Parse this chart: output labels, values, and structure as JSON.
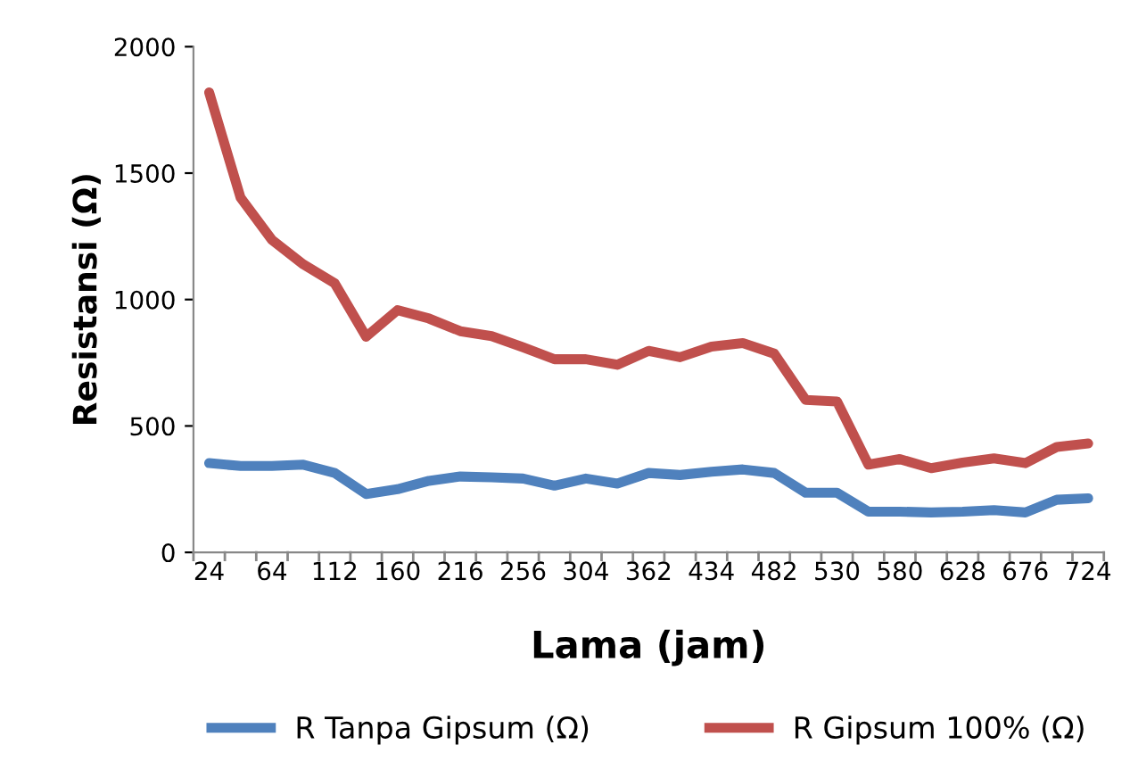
{
  "chart_data": {
    "type": "line",
    "xlabel": "Lama (jam)",
    "ylabel": "Resistansi (Ω)",
    "categories": [
      "24",
      null,
      "64",
      null,
      "112",
      null,
      "160",
      null,
      "216",
      null,
      "256",
      null,
      "304",
      null,
      "362",
      null,
      "434",
      null,
      "482",
      null,
      "530",
      null,
      "580",
      null,
      "628",
      null,
      "676",
      null,
      "724"
    ],
    "ylim": [
      0,
      2000
    ],
    "yticks": [
      0,
      500,
      1000,
      1500,
      2000
    ],
    "grid": false,
    "legend": "bottom",
    "marker": "none",
    "line_style": "solid",
    "series": [
      {
        "name": "R Tanpa Gipsum (Ω)",
        "color": "#4f81bd",
        "values": [
          353,
          342,
          342,
          347,
          314,
          231,
          250,
          283,
          300,
          297,
          292,
          264,
          292,
          272,
          314,
          306,
          319,
          328,
          314,
          236,
          236,
          161,
          161,
          158,
          161,
          167,
          158,
          208,
          214
        ]
      },
      {
        "name": "R Gipsum 100% (Ω)",
        "color": "#c0504d",
        "values": [
          1819,
          1403,
          1236,
          1139,
          1064,
          853,
          958,
          925,
          875,
          855,
          811,
          764,
          764,
          742,
          797,
          772,
          814,
          828,
          786,
          603,
          597,
          347,
          369,
          333,
          355,
          372,
          353,
          417,
          431
        ]
      }
    ]
  }
}
